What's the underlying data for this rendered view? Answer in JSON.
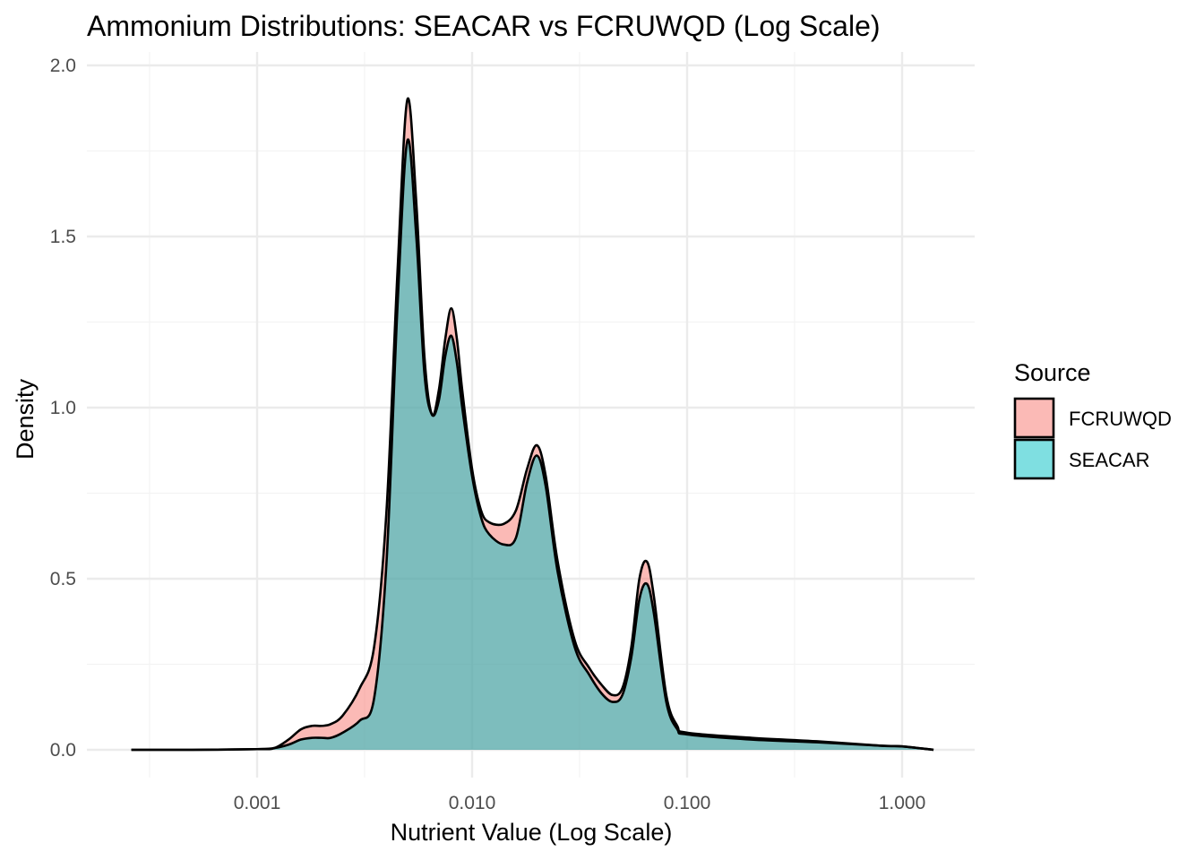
{
  "chart_data": {
    "type": "area",
    "subtype": "density",
    "title": "Ammonium Distributions: SEACAR vs FCRUWQD (Log Scale)",
    "xlabel": "Nutrient Value (Log Scale)",
    "ylabel": "Density",
    "x_scale": "log10",
    "xlim": [
      0.00025,
      1.5
    ],
    "ylim": [
      0,
      2.0
    ],
    "x_ticks": [
      0.001,
      0.01,
      0.1,
      1.0
    ],
    "x_tick_labels": [
      "0.001",
      "0.010",
      "0.100",
      "1.000"
    ],
    "y_ticks": [
      0,
      0.5,
      1.0,
      1.5,
      2.0
    ],
    "y_tick_labels": [
      "0.0",
      "0.5",
      "1.0",
      "1.5",
      "2.0"
    ],
    "grid": true,
    "legend": {
      "title": "Source",
      "position": "right",
      "entries": [
        "FCRUWQD",
        "SEACAR"
      ]
    },
    "series": [
      {
        "name": "FCRUWQD",
        "color": "#F8766D",
        "points": [
          [
            0.00026,
            0.0
          ],
          [
            0.0005,
            0.0
          ],
          [
            0.001,
            0.002
          ],
          [
            0.0012,
            0.005
          ],
          [
            0.0014,
            0.03
          ],
          [
            0.0016,
            0.06
          ],
          [
            0.0018,
            0.07
          ],
          [
            0.002,
            0.07
          ],
          [
            0.0022,
            0.075
          ],
          [
            0.0025,
            0.1
          ],
          [
            0.003,
            0.18
          ],
          [
            0.0035,
            0.3
          ],
          [
            0.004,
            0.7
          ],
          [
            0.0045,
            1.4
          ],
          [
            0.005,
            1.9
          ],
          [
            0.0055,
            1.6
          ],
          [
            0.006,
            1.15
          ],
          [
            0.0065,
            0.98
          ],
          [
            0.007,
            1.05
          ],
          [
            0.0075,
            1.2
          ],
          [
            0.008,
            1.29
          ],
          [
            0.0085,
            1.2
          ],
          [
            0.009,
            1.05
          ],
          [
            0.01,
            0.82
          ],
          [
            0.011,
            0.7
          ],
          [
            0.012,
            0.665
          ],
          [
            0.014,
            0.66
          ],
          [
            0.016,
            0.7
          ],
          [
            0.018,
            0.82
          ],
          [
            0.02,
            0.89
          ],
          [
            0.022,
            0.8
          ],
          [
            0.025,
            0.55
          ],
          [
            0.03,
            0.32
          ],
          [
            0.035,
            0.24
          ],
          [
            0.04,
            0.19
          ],
          [
            0.045,
            0.16
          ],
          [
            0.05,
            0.18
          ],
          [
            0.055,
            0.3
          ],
          [
            0.06,
            0.5
          ],
          [
            0.065,
            0.55
          ],
          [
            0.07,
            0.45
          ],
          [
            0.08,
            0.16
          ],
          [
            0.09,
            0.07
          ],
          [
            0.1,
            0.05
          ],
          [
            0.2,
            0.035
          ],
          [
            0.4,
            0.025
          ],
          [
            0.8,
            0.012
          ],
          [
            1.0,
            0.01
          ],
          [
            1.4,
            0.0
          ]
        ]
      },
      {
        "name": "SEACAR",
        "color": "#00BFC4",
        "points": [
          [
            0.00026,
            0.0
          ],
          [
            0.0005,
            0.0
          ],
          [
            0.001,
            0.002
          ],
          [
            0.0012,
            0.005
          ],
          [
            0.0014,
            0.015
          ],
          [
            0.0016,
            0.03
          ],
          [
            0.0018,
            0.035
          ],
          [
            0.002,
            0.035
          ],
          [
            0.0022,
            0.035
          ],
          [
            0.0025,
            0.05
          ],
          [
            0.003,
            0.085
          ],
          [
            0.0035,
            0.15
          ],
          [
            0.004,
            0.55
          ],
          [
            0.0045,
            1.3
          ],
          [
            0.005,
            1.78
          ],
          [
            0.0055,
            1.5
          ],
          [
            0.006,
            1.1
          ],
          [
            0.0065,
            0.98
          ],
          [
            0.007,
            1.02
          ],
          [
            0.0075,
            1.15
          ],
          [
            0.008,
            1.21
          ],
          [
            0.0085,
            1.13
          ],
          [
            0.009,
            1.0
          ],
          [
            0.01,
            0.8
          ],
          [
            0.011,
            0.68
          ],
          [
            0.012,
            0.63
          ],
          [
            0.014,
            0.6
          ],
          [
            0.016,
            0.62
          ],
          [
            0.018,
            0.78
          ],
          [
            0.02,
            0.86
          ],
          [
            0.022,
            0.77
          ],
          [
            0.025,
            0.52
          ],
          [
            0.03,
            0.3
          ],
          [
            0.035,
            0.22
          ],
          [
            0.04,
            0.165
          ],
          [
            0.045,
            0.14
          ],
          [
            0.05,
            0.16
          ],
          [
            0.055,
            0.27
          ],
          [
            0.06,
            0.44
          ],
          [
            0.065,
            0.485
          ],
          [
            0.07,
            0.4
          ],
          [
            0.08,
            0.14
          ],
          [
            0.09,
            0.06
          ],
          [
            0.1,
            0.045
          ],
          [
            0.2,
            0.03
          ],
          [
            0.4,
            0.022
          ],
          [
            0.8,
            0.012
          ],
          [
            1.0,
            0.01
          ],
          [
            1.4,
            0.0
          ]
        ]
      }
    ]
  }
}
